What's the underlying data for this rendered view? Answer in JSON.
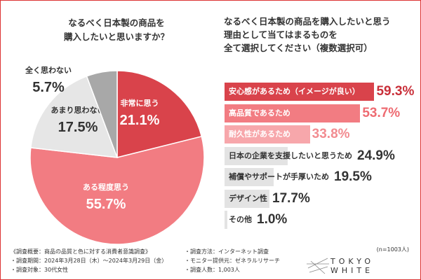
{
  "chart_data": [
    {
      "type": "pie",
      "title": "なるべく日本製の商品を\n購入したいと思いますか？",
      "slices": [
        {
          "label": "非常に思う",
          "value": 21.1,
          "display": "21.1%",
          "color": "#d9434b"
        },
        {
          "label": "ある程度思う",
          "value": 55.7,
          "display": "55.7%",
          "color": "#f27c82"
        },
        {
          "label": "あまり思わない",
          "value": 17.5,
          "display": "17.5%",
          "color": "#e6e6e6"
        },
        {
          "label": "全く思わない",
          "value": 5.7,
          "display": "5.7%",
          "color": "#a8a8a8"
        }
      ]
    },
    {
      "type": "bar",
      "orientation": "horizontal",
      "title": "なるべく日本製の商品を購入したいと思う\n理由として当てはまるものを\n全て選択してください（複数選択可）",
      "bars": [
        {
          "label": "安心感があるため（イメージが良い）",
          "value": 59.3,
          "display": "59.3%",
          "color": "#d9434b",
          "text_color": "#c9303a"
        },
        {
          "label": "高品質であるため",
          "value": 53.7,
          "display": "53.7%",
          "color": "#f27c82",
          "text_color": "#ee6b72"
        },
        {
          "label": "耐久性があるため",
          "value": 33.8,
          "display": "33.8%",
          "color": "#f7a7ab",
          "text_color": "#f28b90"
        },
        {
          "label": "日本の企業を支援したいと思うため",
          "value": 24.9,
          "display": "24.9%",
          "color": "#e3e3e3",
          "text_color": "#333333"
        },
        {
          "label": "補償やサポートが手厚いため",
          "value": 19.5,
          "display": "19.5%",
          "color": "#e3e3e3",
          "text_color": "#333333"
        },
        {
          "label": "デザイン性",
          "value": 17.7,
          "display": "17.7%",
          "color": "#e3e3e3",
          "text_color": "#333333"
        },
        {
          "label": "その他",
          "value": 1.0,
          "display": "1.0%",
          "color": "#e3e3e3",
          "text_color": "#333333"
        }
      ]
    }
  ],
  "footer": {
    "left": [
      "《調査概要：商品の品質と色に対する消費者意識調査》",
      "・調査期間：2024年3月28日（木）〜2024年3月29日（金）",
      "・調査対象：30代女性"
    ],
    "right": [
      "・調査方法：インターネット調査",
      "・モニター提供元：ゼネラルリサーチ",
      "・調査人数：1,003人"
    ],
    "n": "(n=1003人)",
    "logo": "TOKYO WHITE"
  }
}
